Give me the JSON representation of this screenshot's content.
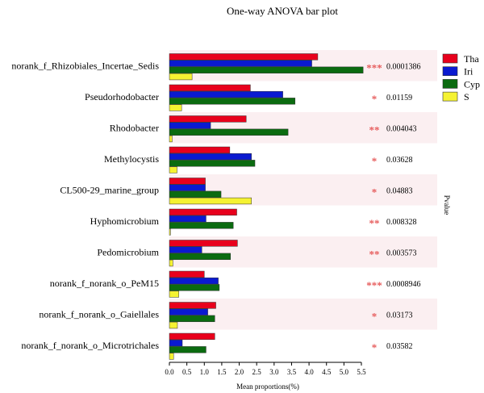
{
  "chart_data": {
    "type": "bar",
    "orientation": "horizontal",
    "title": "One-way ANOVA bar plot",
    "xlabel": "Mean proportions(%)",
    "right_axis_label": "Pvalue",
    "xlim": [
      0,
      5.5
    ],
    "xticks": [
      "0.0",
      "0.5",
      "1.0",
      "1.5",
      "2.0",
      "2.5",
      "3.0",
      "3.5",
      "4.0",
      "4.5",
      "5.0",
      "5.5"
    ],
    "legend_position": "top-right",
    "categories": [
      "norank_f_Rhizobiales_Incertae_Sedis",
      "Pseudorhodobacter",
      "Rhodobacter",
      "Methylocystis",
      "CL500-29_marine_group",
      "Hyphomicrobium",
      "Pedomicrobium",
      "norank_f_norank_o_PeM15",
      "norank_f_norank_o_Gaiellales",
      "norank_f_norank_o_Microtrichales"
    ],
    "series": [
      {
        "name": "Tha",
        "color": "#e8001c",
        "values": [
          4.25,
          2.32,
          2.2,
          1.73,
          1.03,
          1.93,
          1.95,
          1.0,
          1.33,
          1.3
        ]
      },
      {
        "name": "Iri",
        "color": "#0a1ad0",
        "values": [
          4.08,
          3.25,
          1.18,
          2.35,
          1.03,
          1.05,
          0.93,
          1.4,
          1.1,
          0.37
        ]
      },
      {
        "name": "Cyp",
        "color": "#0b6b10",
        "values": [
          5.55,
          3.6,
          3.4,
          2.45,
          1.48,
          1.83,
          1.75,
          1.43,
          1.3,
          1.05
        ]
      },
      {
        "name": "S",
        "color": "#f5f232",
        "values": [
          0.65,
          0.35,
          0.08,
          0.22,
          2.35,
          0.03,
          0.1,
          0.27,
          0.23,
          0.12
        ]
      }
    ],
    "significance": [
      "***",
      "*",
      "**",
      "*",
      "*",
      "**",
      "**",
      "***",
      "*",
      "*"
    ],
    "pvalues": [
      "0.0001386",
      "0.01159",
      "0.004043",
      "0.03628",
      "0.04883",
      "0.008328",
      "0.003573",
      "0.0008946",
      "0.03173",
      "0.03582"
    ],
    "band_color": "#fbeff1",
    "star_color": "#e65c5c"
  }
}
